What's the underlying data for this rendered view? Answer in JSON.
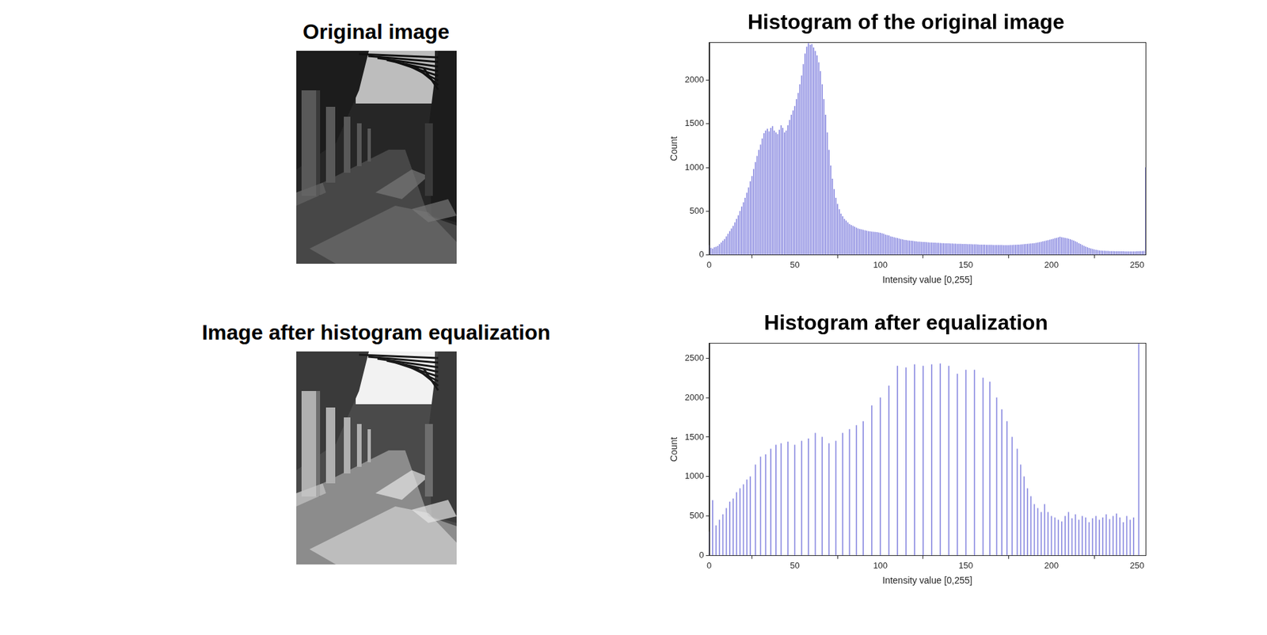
{
  "images": [
    {
      "title": "Original image"
    },
    {
      "title": "Image after histogram equalization"
    }
  ],
  "chart_data": [
    {
      "type": "bar",
      "title": "Histogram of the original image",
      "x_label": "Intensity value [0,255]",
      "y_label": "Count",
      "x": [
        0,
        1,
        2,
        3,
        4,
        5,
        6,
        7,
        8,
        9,
        10,
        11,
        12,
        13,
        14,
        15,
        16,
        17,
        18,
        19,
        20,
        21,
        22,
        23,
        24,
        25,
        26,
        27,
        28,
        29,
        30,
        31,
        32,
        33,
        34,
        35,
        36,
        37,
        38,
        39,
        40,
        41,
        42,
        43,
        44,
        45,
        46,
        47,
        48,
        49,
        50,
        51,
        52,
        53,
        54,
        55,
        56,
        57,
        58,
        59,
        60,
        61,
        62,
        63,
        64,
        65,
        66,
        67,
        68,
        69,
        70,
        71,
        72,
        73,
        74,
        75,
        76,
        77,
        78,
        79,
        80,
        81,
        82,
        83,
        84,
        85,
        86,
        87,
        88,
        89,
        90,
        91,
        92,
        93,
        94,
        95,
        96,
        97,
        98,
        99,
        100,
        101,
        102,
        103,
        104,
        105,
        106,
        107,
        108,
        109,
        110,
        111,
        112,
        113,
        114,
        115,
        116,
        117,
        118,
        119,
        120,
        121,
        122,
        123,
        124,
        125,
        126,
        127,
        128,
        129,
        130,
        131,
        132,
        133,
        134,
        135,
        136,
        137,
        138,
        139,
        140,
        141,
        142,
        143,
        144,
        145,
        146,
        147,
        148,
        149,
        150,
        151,
        152,
        153,
        154,
        155,
        156,
        157,
        158,
        159,
        160,
        161,
        162,
        163,
        164,
        165,
        166,
        167,
        168,
        169,
        170,
        171,
        172,
        173,
        174,
        175,
        176,
        177,
        178,
        179,
        180,
        181,
        182,
        183,
        184,
        185,
        186,
        187,
        188,
        189,
        190,
        191,
        192,
        193,
        194,
        195,
        196,
        197,
        198,
        199,
        200,
        201,
        202,
        203,
        204,
        205,
        206,
        207,
        208,
        209,
        210,
        211,
        212,
        213,
        214,
        215,
        216,
        217,
        218,
        219,
        220,
        221,
        222,
        223,
        224,
        225,
        226,
        227,
        228,
        229,
        230,
        231,
        232,
        233,
        234,
        235,
        236,
        237,
        238,
        239,
        240,
        241,
        242,
        243,
        244,
        245,
        246,
        247,
        248,
        249,
        250,
        251,
        252,
        253,
        254,
        255
      ],
      "values": [
        110,
        80,
        70,
        85,
        90,
        100,
        120,
        140,
        160,
        180,
        210,
        240,
        270,
        300,
        330,
        370,
        410,
        450,
        500,
        550,
        600,
        650,
        710,
        770,
        840,
        900,
        980,
        1060,
        1130,
        1200,
        1260,
        1330,
        1390,
        1420,
        1440,
        1410,
        1450,
        1470,
        1420,
        1400,
        1380,
        1430,
        1480,
        1450,
        1400,
        1420,
        1480,
        1540,
        1600,
        1650,
        1700,
        1780,
        1850,
        1950,
        2050,
        2180,
        2300,
        2380,
        2420,
        2400,
        2410,
        2370,
        2330,
        2280,
        2200,
        2100,
        1950,
        1780,
        1600,
        1400,
        1200,
        1020,
        870,
        750,
        650,
        580,
        520,
        470,
        440,
        410,
        390,
        370,
        350,
        340,
        330,
        320,
        310,
        300,
        295,
        290,
        285,
        280,
        275,
        270,
        268,
        265,
        262,
        260,
        258,
        255,
        250,
        245,
        240,
        230,
        225,
        220,
        210,
        205,
        200,
        195,
        190,
        185,
        180,
        175,
        170,
        168,
        165,
        162,
        160,
        158,
        155,
        152,
        150,
        150,
        148,
        146,
        145,
        143,
        142,
        140,
        140,
        138,
        137,
        135,
        135,
        134,
        133,
        132,
        131,
        130,
        130,
        129,
        128,
        127,
        126,
        125,
        125,
        124,
        123,
        122,
        122,
        121,
        120,
        120,
        119,
        118,
        118,
        117,
        116,
        116,
        115,
        115,
        114,
        114,
        113,
        113,
        112,
        112,
        112,
        111,
        111,
        111,
        110,
        110,
        110,
        110,
        111,
        112,
        113,
        114,
        115,
        116,
        117,
        118,
        120,
        122,
        124,
        126,
        128,
        130,
        133,
        136,
        140,
        144,
        148,
        152,
        157,
        162,
        167,
        172,
        177,
        182,
        188,
        193,
        198,
        205,
        200,
        196,
        192,
        188,
        183,
        177,
        170,
        162,
        153,
        143,
        133,
        122,
        112,
        102,
        93,
        85,
        78,
        72,
        66,
        61,
        57,
        53,
        50,
        48,
        46,
        45,
        44,
        43,
        42,
        41,
        41,
        40,
        40,
        40,
        39,
        39,
        39,
        38,
        38,
        38,
        38,
        38,
        38,
        38,
        39,
        40,
        41,
        42,
        44,
        1000
      ],
      "color": "#8888e0",
      "xlim": [
        0,
        255
      ],
      "ylim": [
        0,
        2430
      ],
      "xticks": [
        0,
        50,
        100,
        150,
        200,
        250
      ],
      "yticks": [
        0,
        500,
        1000,
        1500,
        2000
      ],
      "grid": false
    },
    {
      "type": "bar",
      "title": "Histogram after equalization",
      "x_label": "Intensity value [0,255]",
      "y_label": "Count",
      "x": [
        0,
        2,
        4,
        6,
        8,
        10,
        12,
        14,
        16,
        18,
        20,
        22,
        24,
        27,
        30,
        33,
        36,
        39,
        42,
        46,
        50,
        54,
        58,
        62,
        66,
        70,
        74,
        78,
        82,
        86,
        90,
        95,
        100,
        105,
        110,
        115,
        120,
        125,
        130,
        135,
        140,
        145,
        150,
        155,
        160,
        164,
        168,
        171,
        174,
        177,
        180,
        182,
        184,
        186,
        188,
        190,
        192,
        194,
        196,
        198,
        200,
        202,
        204,
        206,
        208,
        210,
        212,
        214,
        216,
        218,
        220,
        222,
        224,
        226,
        228,
        230,
        232,
        234,
        236,
        238,
        240,
        242,
        244,
        246,
        248,
        251
      ],
      "values": [
        300,
        700,
        380,
        450,
        520,
        600,
        680,
        720,
        800,
        850,
        900,
        960,
        1000,
        1150,
        1250,
        1280,
        1350,
        1400,
        1420,
        1440,
        1400,
        1450,
        1480,
        1550,
        1500,
        1420,
        1450,
        1550,
        1600,
        1650,
        1700,
        1900,
        2000,
        2150,
        2400,
        2380,
        2420,
        2400,
        2420,
        2430,
        2400,
        2300,
        2350,
        2350,
        2250,
        2200,
        2000,
        1850,
        1700,
        1500,
        1350,
        1150,
        1000,
        850,
        750,
        650,
        600,
        550,
        650,
        550,
        500,
        480,
        450,
        430,
        500,
        550,
        470,
        520,
        450,
        500,
        480,
        420,
        470,
        500,
        450,
        480,
        520,
        460,
        500,
        530,
        480,
        420,
        500,
        450,
        480,
        2680
      ],
      "color": "#8888e0",
      "xlim": [
        0,
        255
      ],
      "ylim": [
        0,
        2690
      ],
      "xticks": [
        0,
        50,
        100,
        150,
        200,
        250
      ],
      "yticks": [
        0,
        500,
        1000,
        1500,
        2000,
        2500
      ],
      "grid": false
    }
  ]
}
